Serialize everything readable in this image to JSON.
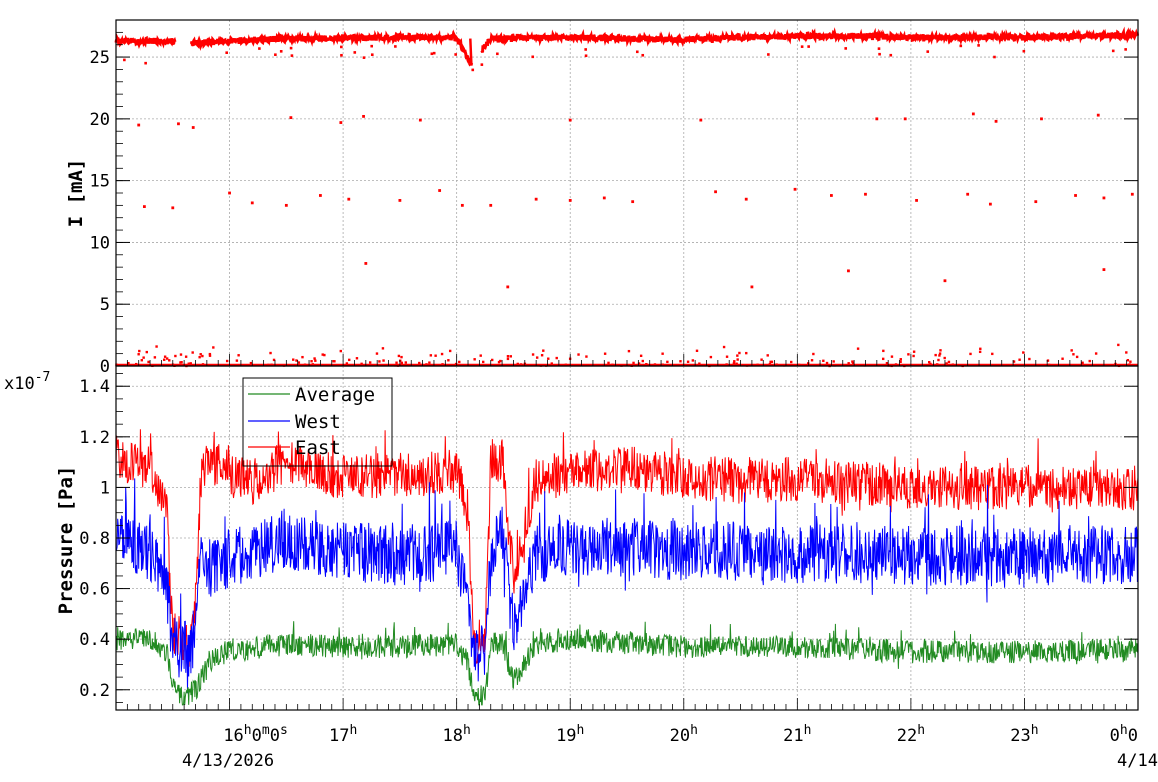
{
  "chart_data": [
    {
      "type": "scatter",
      "ylabel": "I [mA]",
      "xlim_hours": [
        15.0,
        24.0
      ],
      "ylim": [
        0,
        28
      ],
      "grid": true,
      "yticks": [
        0,
        5,
        10,
        15,
        20,
        25
      ],
      "colors": {
        "series": "#ff0000"
      },
      "series": [
        {
          "values_description_points": [
            {
              "x": 15.0,
              "y": 26.3
            },
            {
              "x": 15.5,
              "y": 26.3
            },
            {
              "x": 15.6,
              "y": 26.1
            },
            {
              "x": 16.0,
              "y": 26.3
            },
            {
              "x": 16.5,
              "y": 26.5
            },
            {
              "x": 17.0,
              "y": 26.5
            },
            {
              "x": 17.5,
              "y": 26.6
            },
            {
              "x": 18.0,
              "y": 26.6
            },
            {
              "x": 18.12,
              "y": 24.5
            },
            {
              "x": 18.3,
              "y": 26.5
            },
            {
              "x": 19.0,
              "y": 26.6
            },
            {
              "x": 19.5,
              "y": 26.5
            },
            {
              "x": 20.0,
              "y": 26.4
            },
            {
              "x": 20.5,
              "y": 26.6
            },
            {
              "x": 21.0,
              "y": 26.7
            },
            {
              "x": 21.5,
              "y": 26.7
            },
            {
              "x": 22.0,
              "y": 26.6
            },
            {
              "x": 22.5,
              "y": 26.6
            },
            {
              "x": 23.0,
              "y": 26.6
            },
            {
              "x": 23.5,
              "y": 26.7
            },
            {
              "x": 24.0,
              "y": 26.8
            }
          ]
        }
      ],
      "scatter_points": [
        {
          "x": 15.2,
          "y": 19.5
        },
        {
          "x": 15.55,
          "y": 19.6
        },
        {
          "x": 15.68,
          "y": 19.3
        },
        {
          "x": 16.54,
          "y": 20.1
        },
        {
          "x": 16.98,
          "y": 19.7
        },
        {
          "x": 17.18,
          "y": 20.2
        },
        {
          "x": 17.68,
          "y": 19.9
        },
        {
          "x": 19.0,
          "y": 19.9
        },
        {
          "x": 20.15,
          "y": 19.9
        },
        {
          "x": 21.7,
          "y": 20.0
        },
        {
          "x": 21.95,
          "y": 20.0
        },
        {
          "x": 22.55,
          "y": 20.4
        },
        {
          "x": 22.75,
          "y": 19.8
        },
        {
          "x": 23.15,
          "y": 20.0
        },
        {
          "x": 23.65,
          "y": 20.3
        },
        {
          "x": 15.25,
          "y": 12.9
        },
        {
          "x": 15.5,
          "y": 12.8
        },
        {
          "x": 16.0,
          "y": 14.0
        },
        {
          "x": 16.2,
          "y": 13.2
        },
        {
          "x": 16.5,
          "y": 13.0
        },
        {
          "x": 16.8,
          "y": 13.8
        },
        {
          "x": 17.05,
          "y": 13.5
        },
        {
          "x": 17.5,
          "y": 13.4
        },
        {
          "x": 17.85,
          "y": 14.2
        },
        {
          "x": 18.05,
          "y": 13.0
        },
        {
          "x": 18.3,
          "y": 13.0
        },
        {
          "x": 18.7,
          "y": 13.5
        },
        {
          "x": 19.0,
          "y": 13.4
        },
        {
          "x": 19.3,
          "y": 13.6
        },
        {
          "x": 19.55,
          "y": 13.3
        },
        {
          "x": 20.28,
          "y": 14.1
        },
        {
          "x": 20.55,
          "y": 13.5
        },
        {
          "x": 20.98,
          "y": 14.3
        },
        {
          "x": 21.3,
          "y": 13.8
        },
        {
          "x": 21.6,
          "y": 13.9
        },
        {
          "x": 22.05,
          "y": 13.4
        },
        {
          "x": 22.5,
          "y": 13.9
        },
        {
          "x": 22.7,
          "y": 13.1
        },
        {
          "x": 23.1,
          "y": 13.3
        },
        {
          "x": 23.45,
          "y": 13.8
        },
        {
          "x": 23.7,
          "y": 13.6
        },
        {
          "x": 23.95,
          "y": 13.9
        },
        {
          "x": 17.2,
          "y": 8.3
        },
        {
          "x": 18.45,
          "y": 6.4
        },
        {
          "x": 20.6,
          "y": 6.4
        },
        {
          "x": 21.45,
          "y": 7.7
        },
        {
          "x": 22.3,
          "y": 6.9
        },
        {
          "x": 23.7,
          "y": 7.8
        }
      ],
      "baseline": {
        "y": 0.0,
        "scatter_max": 1.8
      }
    },
    {
      "type": "line",
      "ylabel": "Pressure [Pa]",
      "y_multiplier": "x10",
      "y_multiplier_exponent": "-7",
      "xlim_hours": [
        15.0,
        24.0
      ],
      "ylim": [
        0.12,
        1.48
      ],
      "grid": true,
      "yticks": [
        0.2,
        0.4,
        0.6,
        0.8,
        1.0,
        1.2,
        1.4
      ],
      "ytick_labels": [
        "0.2",
        "0.4",
        "0.6",
        "0.8",
        "1",
        "1.2",
        "1.4"
      ],
      "xticks_hours": [
        16,
        17,
        18,
        19,
        20,
        21,
        22,
        23,
        24
      ],
      "xtick_labels": [
        {
          "base": "16",
          "sup1": "h",
          "mid": "0",
          "sup2": "m",
          "tail": "0",
          "sup3": "s"
        },
        {
          "base": "17",
          "sup1": "h"
        },
        {
          "base": "18",
          "sup1": "h"
        },
        {
          "base": "19",
          "sup1": "h"
        },
        {
          "base": "20",
          "sup1": "h"
        },
        {
          "base": "21",
          "sup1": "h"
        },
        {
          "base": "22",
          "sup1": "h"
        },
        {
          "base": "23",
          "sup1": "h"
        },
        {
          "base": "0",
          "sup1": "h",
          "mid": "0"
        }
      ],
      "date_labels": [
        "4/13/2026",
        "4/14"
      ],
      "legend": {
        "position": "top-left",
        "entries": [
          "Average",
          "West",
          "East"
        ]
      },
      "series": [
        {
          "name": "East",
          "color": "#ff0000",
          "noise": 0.09,
          "x": [
            15.0,
            15.3,
            15.45,
            15.5,
            15.65,
            15.7,
            15.75,
            15.85,
            16.0,
            16.2,
            16.5,
            17.0,
            17.5,
            18.0,
            18.1,
            18.15,
            18.25,
            18.3,
            18.4,
            18.5,
            18.7,
            19.0,
            19.5,
            20.0,
            20.5,
            21.0,
            21.5,
            22.0,
            22.5,
            23.0,
            23.5,
            24.0
          ],
          "y": [
            1.12,
            1.08,
            0.9,
            0.42,
            0.37,
            0.55,
            1.05,
            1.12,
            1.05,
            1.02,
            1.1,
            1.04,
            1.05,
            1.06,
            0.9,
            0.4,
            0.38,
            1.1,
            1.12,
            0.65,
            1.03,
            1.06,
            1.08,
            1.04,
            1.03,
            1.03,
            1.02,
            1.0,
            1.0,
            1.0,
            1.0,
            0.98
          ]
        },
        {
          "name": "West",
          "color": "#0000ff",
          "noise": 0.12,
          "x": [
            15.0,
            15.3,
            15.45,
            15.5,
            15.65,
            15.7,
            15.75,
            15.85,
            16.0,
            16.2,
            16.5,
            17.0,
            17.5,
            18.0,
            18.1,
            18.15,
            18.25,
            18.3,
            18.4,
            18.5,
            18.7,
            19.0,
            19.5,
            20.0,
            20.5,
            21.0,
            21.5,
            22.0,
            22.5,
            23.0,
            23.5,
            24.0
          ],
          "y": [
            0.8,
            0.75,
            0.6,
            0.38,
            0.34,
            0.45,
            0.7,
            0.68,
            0.72,
            0.74,
            0.8,
            0.75,
            0.73,
            0.75,
            0.55,
            0.35,
            0.33,
            0.72,
            0.82,
            0.45,
            0.74,
            0.76,
            0.76,
            0.75,
            0.75,
            0.74,
            0.74,
            0.73,
            0.73,
            0.72,
            0.74,
            0.73
          ]
        },
        {
          "name": "Average",
          "color": "#228b22",
          "noise": 0.045,
          "x": [
            15.0,
            15.3,
            15.45,
            15.5,
            15.6,
            15.7,
            15.75,
            15.85,
            16.0,
            16.5,
            17.0,
            17.5,
            18.0,
            18.1,
            18.15,
            18.25,
            18.3,
            18.4,
            18.5,
            18.7,
            19.0,
            20.0,
            21.0,
            22.0,
            23.0,
            24.0
          ],
          "y": [
            0.4,
            0.4,
            0.35,
            0.2,
            0.17,
            0.2,
            0.25,
            0.32,
            0.35,
            0.38,
            0.37,
            0.37,
            0.38,
            0.3,
            0.18,
            0.17,
            0.38,
            0.4,
            0.23,
            0.38,
            0.4,
            0.37,
            0.37,
            0.35,
            0.35,
            0.36
          ]
        }
      ]
    }
  ]
}
